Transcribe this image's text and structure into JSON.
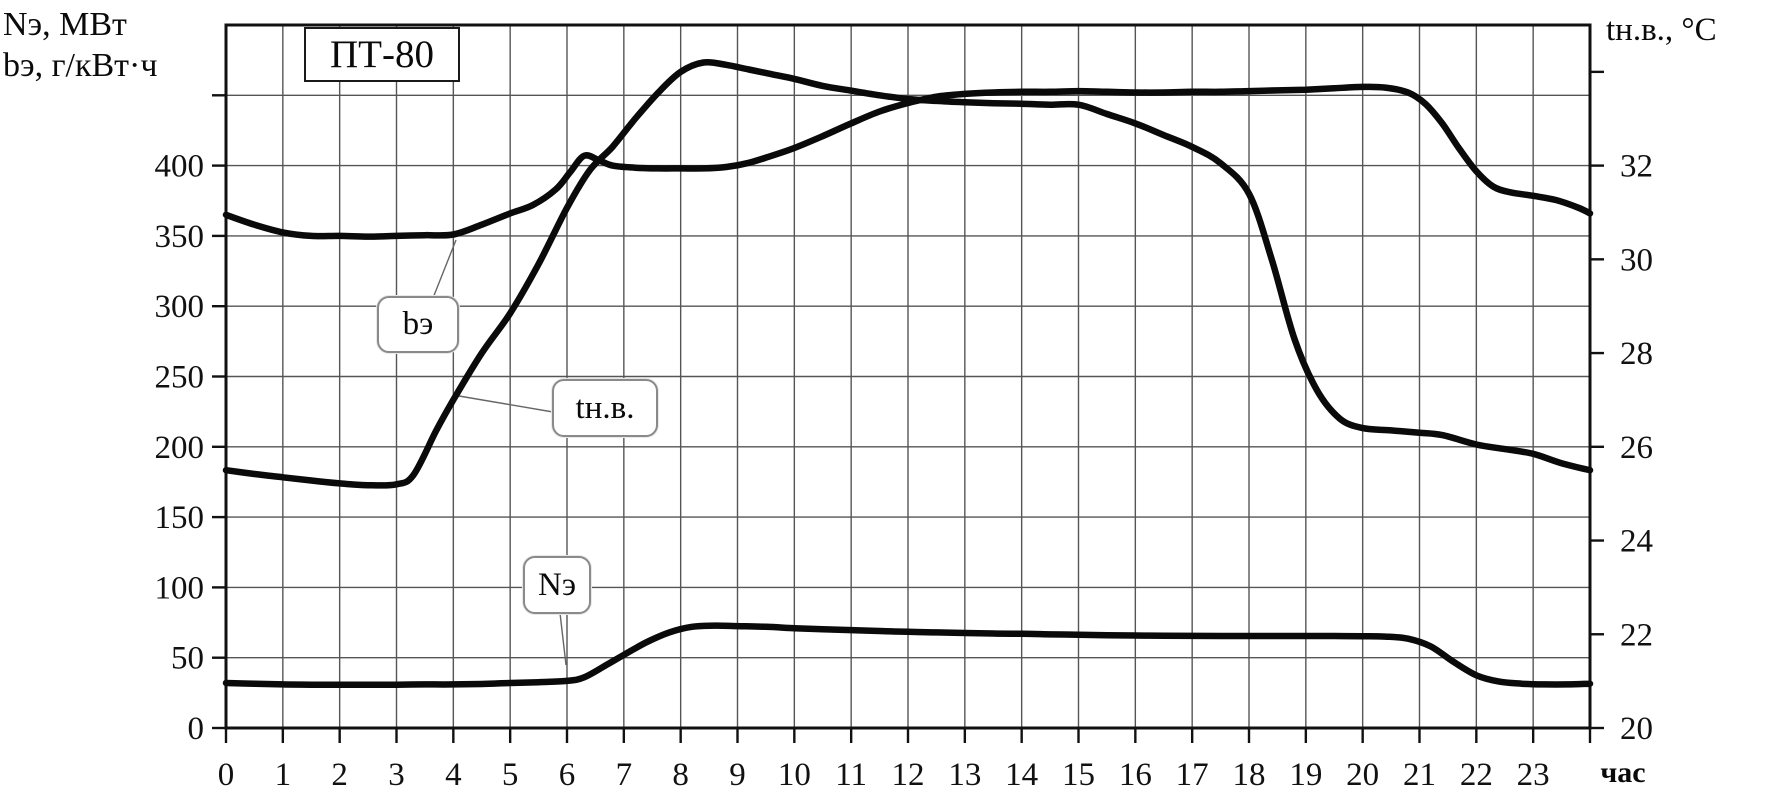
{
  "figure": {
    "title_box": "ПТ-80",
    "left_axis_title_line1": "Nэ, МВт",
    "left_axis_title_line2": "bэ, г/кВт·ч",
    "right_axis_title": "tн.в., °С",
    "x_axis_unit": "час"
  },
  "labels": {
    "be": "bэ",
    "tnv": "tн.в.",
    "ne": "Nэ"
  },
  "colors": {
    "curve": "#0a0a0a",
    "grid": "#555555",
    "frame": "#111111",
    "callout_line": "#666666",
    "text": "#111111",
    "background": "#ffffff"
  },
  "chart_data": {
    "type": "line",
    "title": "ПТ-80",
    "xlabel": "час",
    "x_range": [
      0,
      24
    ],
    "x_tick_labels": [
      0,
      1,
      2,
      3,
      4,
      5,
      6,
      7,
      8,
      9,
      10,
      11,
      12,
      13,
      14,
      15,
      16,
      17,
      18,
      19,
      20,
      21,
      22,
      23
    ],
    "left_axis": {
      "label": "Nэ, МВт / bэ, г/кВт·ч",
      "range": [
        0,
        500
      ],
      "labeled_ticks": [
        0,
        50,
        100,
        150,
        200,
        250,
        300,
        350,
        400
      ],
      "unlabeled_ticks": [
        450
      ],
      "gridline_step": 50
    },
    "right_axis": {
      "label": "tн.в., °С",
      "range": [
        20,
        35
      ],
      "labeled_ticks": [
        20,
        22,
        24,
        26,
        28,
        30,
        32
      ],
      "unlabeled_ticks": [
        34
      ]
    },
    "grid": true,
    "series": [
      {
        "name": "bэ",
        "axis": "left",
        "units": "г/кВт·ч",
        "points": [
          [
            0,
            365
          ],
          [
            0.5,
            358
          ],
          [
            1,
            352.5
          ],
          [
            1.5,
            350
          ],
          [
            2,
            350
          ],
          [
            2.5,
            349.5
          ],
          [
            3,
            350
          ],
          [
            3.5,
            350.5
          ],
          [
            4,
            351
          ],
          [
            4.5,
            358
          ],
          [
            5,
            366
          ],
          [
            5.4,
            372
          ],
          [
            5.8,
            383
          ],
          [
            6.05,
            395
          ],
          [
            6.3,
            407
          ],
          [
            6.55,
            404
          ],
          [
            6.8,
            400
          ],
          [
            7.2,
            398.5
          ],
          [
            7.6,
            398
          ],
          [
            8,
            398
          ],
          [
            8.4,
            398
          ],
          [
            8.8,
            399
          ],
          [
            9.2,
            402
          ],
          [
            9.6,
            407
          ],
          [
            10,
            412.5
          ],
          [
            10.5,
            421
          ],
          [
            11,
            430
          ],
          [
            11.5,
            438.5
          ],
          [
            12,
            444.5
          ],
          [
            12.5,
            449
          ],
          [
            13,
            451
          ],
          [
            13.5,
            452
          ],
          [
            14,
            452.5
          ],
          [
            14.5,
            452.5
          ],
          [
            15,
            453
          ],
          [
            15.5,
            452.5
          ],
          [
            16,
            452
          ],
          [
            16.5,
            452
          ],
          [
            17,
            452.5
          ],
          [
            17.5,
            452.5
          ],
          [
            18,
            453
          ],
          [
            18.5,
            453.5
          ],
          [
            19,
            454
          ],
          [
            19.5,
            455
          ],
          [
            20,
            456
          ],
          [
            20.4,
            455.5
          ],
          [
            20.8,
            452
          ],
          [
            21.1,
            444
          ],
          [
            21.4,
            430
          ],
          [
            21.7,
            412
          ],
          [
            22,
            396
          ],
          [
            22.3,
            385
          ],
          [
            22.6,
            381
          ],
          [
            23,
            378.5
          ],
          [
            23.4,
            375.5
          ],
          [
            23.8,
            370
          ],
          [
            24,
            366
          ]
        ]
      },
      {
        "name": "tн.в.",
        "axis": "right",
        "units": "°С",
        "points": [
          [
            0,
            25.5
          ],
          [
            0.5,
            25.42
          ],
          [
            1,
            25.35
          ],
          [
            1.5,
            25.28
          ],
          [
            2,
            25.22
          ],
          [
            2.5,
            25.18
          ],
          [
            3,
            25.2
          ],
          [
            3.3,
            25.4
          ],
          [
            3.7,
            26.35
          ],
          [
            4,
            27.0
          ],
          [
            4.5,
            28.0
          ],
          [
            5,
            28.85
          ],
          [
            5.5,
            29.9
          ],
          [
            6,
            31.1
          ],
          [
            6.4,
            31.9
          ],
          [
            6.8,
            32.4
          ],
          [
            7.2,
            33.0
          ],
          [
            7.6,
            33.55
          ],
          [
            8,
            34.0
          ],
          [
            8.4,
            34.2
          ],
          [
            8.8,
            34.15
          ],
          [
            9.2,
            34.05
          ],
          [
            9.6,
            33.95
          ],
          [
            10,
            33.85
          ],
          [
            10.5,
            33.7
          ],
          [
            11,
            33.6
          ],
          [
            11.5,
            33.5
          ],
          [
            12,
            33.42
          ],
          [
            12.5,
            33.38
          ],
          [
            13,
            33.35
          ],
          [
            13.5,
            33.33
          ],
          [
            14,
            33.32
          ],
          [
            14.5,
            33.3
          ],
          [
            15,
            33.3
          ],
          [
            15.5,
            33.1
          ],
          [
            16,
            32.9
          ],
          [
            16.5,
            32.65
          ],
          [
            17,
            32.4
          ],
          [
            17.5,
            32.05
          ],
          [
            18,
            31.4
          ],
          [
            18.4,
            30.0
          ],
          [
            18.8,
            28.3
          ],
          [
            19.2,
            27.2
          ],
          [
            19.6,
            26.6
          ],
          [
            20,
            26.4
          ],
          [
            20.5,
            26.35
          ],
          [
            21,
            26.3
          ],
          [
            21.4,
            26.25
          ],
          [
            22,
            26.05
          ],
          [
            22.5,
            25.95
          ],
          [
            23,
            25.85
          ],
          [
            23.5,
            25.65
          ],
          [
            24,
            25.5
          ]
        ]
      },
      {
        "name": "Nэ",
        "axis": "left",
        "units": "МВт",
        "points": [
          [
            0,
            32
          ],
          [
            0.5,
            31.5
          ],
          [
            1,
            31
          ],
          [
            1.5,
            30.8
          ],
          [
            2,
            30.8
          ],
          [
            2.5,
            30.8
          ],
          [
            3,
            30.8
          ],
          [
            3.5,
            31
          ],
          [
            4,
            31
          ],
          [
            4.5,
            31.3
          ],
          [
            5,
            32
          ],
          [
            5.5,
            32.6
          ],
          [
            6,
            33.5
          ],
          [
            6.3,
            36
          ],
          [
            6.7,
            45
          ],
          [
            7,
            52
          ],
          [
            7.4,
            61
          ],
          [
            7.8,
            68
          ],
          [
            8.2,
            72
          ],
          [
            8.6,
            72.8
          ],
          [
            9,
            72.5
          ],
          [
            9.5,
            72
          ],
          [
            10,
            71
          ],
          [
            10.5,
            70.3
          ],
          [
            11,
            69.6
          ],
          [
            11.5,
            69
          ],
          [
            12,
            68.4
          ],
          [
            12.5,
            68
          ],
          [
            13,
            67.6
          ],
          [
            13.5,
            67.2
          ],
          [
            14,
            67
          ],
          [
            14.5,
            66.6
          ],
          [
            15,
            66.3
          ],
          [
            15.5,
            66
          ],
          [
            16,
            65.8
          ],
          [
            16.5,
            65.6
          ],
          [
            17,
            65.5
          ],
          [
            17.5,
            65.4
          ],
          [
            18,
            65.4
          ],
          [
            18.5,
            65.4
          ],
          [
            19,
            65.4
          ],
          [
            19.5,
            65.4
          ],
          [
            20,
            65.3
          ],
          [
            20.4,
            65
          ],
          [
            20.8,
            63.5
          ],
          [
            21.2,
            58
          ],
          [
            21.6,
            47
          ],
          [
            22,
            37.5
          ],
          [
            22.4,
            33
          ],
          [
            22.8,
            31.5
          ],
          [
            23.2,
            31
          ],
          [
            23.6,
            31
          ],
          [
            24,
            31.5
          ]
        ]
      }
    ]
  }
}
